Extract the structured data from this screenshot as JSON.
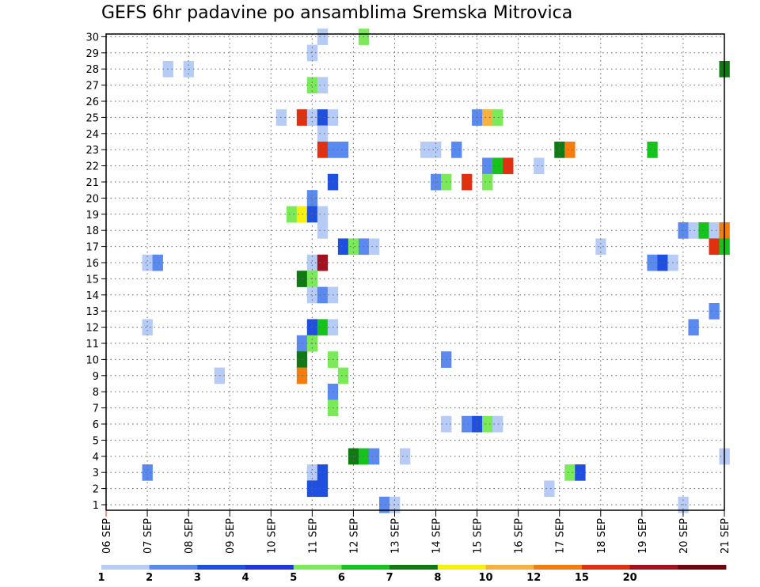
{
  "chart_data": {
    "type": "heatmap",
    "title": "GEFS 6hr padavine po ansamblima Sremska Mitrovica",
    "x_tick_labels": [
      "06 SEP",
      "07 SEP",
      "08 SEP",
      "09 SEP",
      "10 SEP",
      "11 SEP",
      "12 SEP",
      "13 SEP",
      "14 SEP",
      "15 SEP",
      "16 SEP",
      "17 SEP",
      "18 SEP",
      "19 SEP",
      "20 SEP",
      "21 SEP"
    ],
    "y_tick_labels": [
      "1",
      "2",
      "3",
      "4",
      "5",
      "6",
      "7",
      "8",
      "9",
      "10",
      "11",
      "12",
      "13",
      "14",
      "15",
      "16",
      "17",
      "18",
      "19",
      "20",
      "21",
      "22",
      "23",
      "24",
      "25",
      "26",
      "27",
      "28",
      "29",
      "30"
    ],
    "x_range_days": [
      0,
      15
    ],
    "y_range_members": [
      0,
      30
    ],
    "grid": true,
    "colorbar": {
      "levels": [
        "1",
        "2",
        "3",
        "4",
        "5",
        "6",
        "7",
        "8",
        "10",
        "12",
        "15",
        "20"
      ],
      "colors": [
        "#b6cbf5",
        "#5a8af0",
        "#1e4fe0",
        "#1f36d8",
        "#7aea59",
        "#16c21c",
        "#0f7a12",
        "#f5f10c",
        "#f7b23d",
        "#f47d0e",
        "#e1300f",
        "#a3111e",
        "#70060c"
      ]
    },
    "cells": [
      [
        5.25,
        30,
        0
      ],
      [
        6.25,
        30,
        4
      ],
      [
        5.0,
        29,
        0
      ],
      [
        1.5,
        28,
        0
      ],
      [
        2.0,
        28,
        0
      ],
      [
        15.0,
        28,
        6
      ],
      [
        5.0,
        27,
        4
      ],
      [
        5.25,
        27,
        0
      ],
      [
        4.25,
        25,
        0
      ],
      [
        4.75,
        25,
        10
      ],
      [
        5.0,
        25,
        0
      ],
      [
        5.25,
        25,
        2
      ],
      [
        5.5,
        25,
        0
      ],
      [
        9.0,
        25,
        1
      ],
      [
        9.25,
        25,
        8
      ],
      [
        9.5,
        25,
        4
      ],
      [
        5.25,
        24,
        0
      ],
      [
        5.25,
        23,
        10
      ],
      [
        5.5,
        23,
        1
      ],
      [
        5.75,
        23,
        1
      ],
      [
        7.75,
        23,
        0
      ],
      [
        8.0,
        23,
        0
      ],
      [
        8.5,
        23,
        1
      ],
      [
        11.0,
        23,
        6
      ],
      [
        11.25,
        23,
        9
      ],
      [
        13.25,
        23,
        5
      ],
      [
        9.25,
        22,
        1
      ],
      [
        9.5,
        22,
        5
      ],
      [
        9.75,
        22,
        10
      ],
      [
        10.5,
        22,
        0
      ],
      [
        5.5,
        21,
        2
      ],
      [
        8.0,
        21,
        1
      ],
      [
        8.25,
        21,
        4
      ],
      [
        8.75,
        21,
        10
      ],
      [
        9.25,
        21,
        4
      ],
      [
        5.0,
        20,
        1
      ],
      [
        4.5,
        19,
        4
      ],
      [
        4.75,
        19,
        7
      ],
      [
        5.0,
        19,
        2
      ],
      [
        5.25,
        19,
        0
      ],
      [
        5.25,
        18,
        0
      ],
      [
        14.0,
        18,
        1
      ],
      [
        14.25,
        18,
        0
      ],
      [
        14.5,
        18,
        5
      ],
      [
        14.75,
        18,
        0
      ],
      [
        15.0,
        18,
        9
      ],
      [
        5.75,
        17,
        2
      ],
      [
        6.0,
        17,
        4
      ],
      [
        6.25,
        17,
        1
      ],
      [
        6.5,
        17,
        0
      ],
      [
        12.0,
        17,
        0
      ],
      [
        14.75,
        17,
        10
      ],
      [
        15.0,
        17,
        5
      ],
      [
        1.0,
        16,
        0
      ],
      [
        1.25,
        16,
        1
      ],
      [
        5.0,
        16,
        0
      ],
      [
        5.25,
        16,
        11
      ],
      [
        13.25,
        16,
        1
      ],
      [
        13.5,
        16,
        2
      ],
      [
        13.75,
        16,
        0
      ],
      [
        4.75,
        15,
        6
      ],
      [
        5.0,
        15,
        4
      ],
      [
        5.0,
        14,
        0
      ],
      [
        5.25,
        14,
        1
      ],
      [
        5.5,
        14,
        0
      ],
      [
        14.75,
        13,
        1
      ],
      [
        1.0,
        12,
        0
      ],
      [
        5.0,
        12,
        2
      ],
      [
        5.25,
        12,
        5
      ],
      [
        5.5,
        12,
        0
      ],
      [
        14.25,
        12,
        1
      ],
      [
        4.75,
        11,
        1
      ],
      [
        5.0,
        11,
        4
      ],
      [
        4.75,
        10,
        6
      ],
      [
        5.5,
        10,
        4
      ],
      [
        8.25,
        10,
        1
      ],
      [
        2.75,
        9,
        0
      ],
      [
        4.75,
        9,
        9
      ],
      [
        5.75,
        9,
        4
      ],
      [
        5.5,
        8,
        1
      ],
      [
        5.5,
        7,
        4
      ],
      [
        8.25,
        6,
        0
      ],
      [
        8.75,
        6,
        1
      ],
      [
        9.0,
        6,
        2
      ],
      [
        9.25,
        6,
        4
      ],
      [
        9.5,
        6,
        0
      ],
      [
        6.0,
        4,
        6
      ],
      [
        6.25,
        4,
        5
      ],
      [
        6.5,
        4,
        1
      ],
      [
        7.25,
        4,
        0
      ],
      [
        15.0,
        4,
        0
      ],
      [
        1.0,
        3,
        1
      ],
      [
        5.0,
        3,
        0
      ],
      [
        5.25,
        3,
        2
      ],
      [
        11.25,
        3,
        4
      ],
      [
        11.5,
        3,
        2
      ],
      [
        5.0,
        2,
        2
      ],
      [
        5.25,
        2,
        2
      ],
      [
        10.75,
        2,
        0
      ],
      [
        6.75,
        1,
        1
      ],
      [
        7.0,
        1,
        0
      ],
      [
        14.0,
        1,
        0
      ]
    ]
  }
}
